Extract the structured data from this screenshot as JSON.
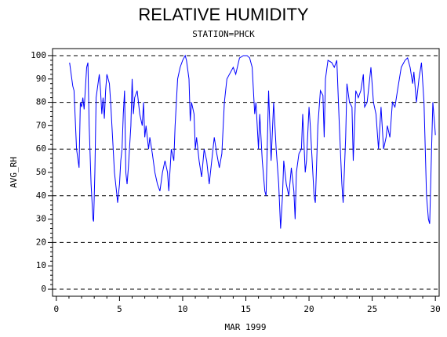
{
  "chart_data": {
    "type": "line",
    "title": "RELATIVE HUMIDITY",
    "subtitle": "STATION=PHCK",
    "x_label": "MAR 1999",
    "y_label": "AVG_RH",
    "color": "#0000ff",
    "xlim": [
      -0.3,
      30.3
    ],
    "ylim": [
      -3,
      103
    ],
    "xticks": [
      0,
      5,
      10,
      15,
      20,
      25,
      30
    ],
    "yticks": [
      0,
      10,
      20,
      30,
      40,
      50,
      60,
      70,
      80,
      90,
      100
    ],
    "ygrid": [
      0,
      20,
      40,
      60,
      80,
      100
    ],
    "x": [
      1.05,
      1.3,
      1.4,
      1.6,
      1.8,
      1.9,
      2.0,
      2.1,
      2.2,
      2.4,
      2.5,
      2.6,
      2.75,
      2.9,
      2.95,
      3.05,
      3.15,
      3.3,
      3.4,
      3.5,
      3.6,
      3.7,
      3.8,
      3.9,
      4.0,
      4.2,
      4.3,
      4.45,
      4.6,
      4.8,
      4.85,
      5.0,
      5.1,
      5.2,
      5.3,
      5.4,
      5.5,
      5.6,
      5.7,
      5.9,
      6.0,
      6.1,
      6.2,
      6.4,
      6.6,
      6.8,
      6.9,
      7.0,
      7.1,
      7.3,
      7.4,
      7.6,
      7.8,
      8.0,
      8.2,
      8.4,
      8.6,
      8.8,
      8.9,
      9.1,
      9.3,
      9.4,
      9.6,
      9.8,
      10.0,
      10.2,
      10.3,
      10.5,
      10.6,
      10.7,
      10.9,
      11.0,
      11.1,
      11.3,
      11.5,
      11.7,
      11.9,
      12.1,
      12.3,
      12.5,
      12.7,
      12.9,
      13.1,
      13.3,
      13.5,
      13.8,
      14.0,
      14.2,
      14.5,
      14.8,
      15.1,
      15.3,
      15.5,
      15.7,
      15.8,
      16.0,
      16.1,
      16.3,
      16.5,
      16.6,
      16.8,
      16.9,
      17.0,
      17.2,
      17.4,
      17.6,
      17.75,
      17.9,
      18.0,
      18.2,
      18.4,
      18.6,
      18.8,
      18.9,
      19.0,
      19.2,
      19.4,
      19.5,
      19.7,
      19.8,
      20.0,
      20.1,
      20.2,
      20.4,
      20.5,
      20.7,
      20.9,
      21.1,
      21.2,
      21.3,
      21.5,
      21.8,
      22.0,
      22.2,
      22.4,
      22.6,
      22.7,
      22.9,
      23.0,
      23.2,
      23.4,
      23.5,
      23.7,
      23.9,
      24.1,
      24.3,
      24.4,
      24.6,
      24.8,
      24.9,
      25.1,
      25.3,
      25.5,
      25.7,
      25.9,
      26.1,
      26.2,
      26.4,
      26.6,
      26.8,
      27.0,
      27.3,
      27.6,
      27.8,
      28.0,
      28.2,
      28.3,
      28.5,
      28.7,
      28.9,
      29.1,
      29.3,
      29.45,
      29.55,
      29.7,
      29.8,
      29.95,
      30.0
    ],
    "values": [
      97,
      87,
      85,
      60,
      52,
      80,
      78,
      82,
      77,
      95,
      97,
      70,
      45,
      30,
      29,
      50,
      82,
      88,
      92,
      85,
      75,
      82,
      73,
      85,
      92,
      88,
      80,
      65,
      50,
      40,
      37,
      45,
      55,
      60,
      75,
      85,
      50,
      45,
      52,
      70,
      90,
      75,
      82,
      85,
      75,
      70,
      80,
      65,
      70,
      60,
      65,
      58,
      50,
      45,
      42,
      50,
      55,
      50,
      42,
      60,
      55,
      70,
      90,
      95,
      98,
      100,
      98,
      90,
      72,
      80,
      75,
      60,
      65,
      55,
      48,
      60,
      55,
      45,
      55,
      65,
      58,
      52,
      58,
      80,
      90,
      93,
      95,
      92,
      99,
      100,
      100,
      99,
      95,
      75,
      80,
      60,
      75,
      55,
      42,
      40,
      85,
      70,
      55,
      80,
      60,
      45,
      26,
      40,
      55,
      45,
      40,
      52,
      42,
      30,
      50,
      58,
      60,
      75,
      50,
      55,
      78,
      70,
      60,
      40,
      37,
      70,
      85,
      83,
      65,
      90,
      98,
      97,
      95,
      98,
      70,
      45,
      37,
      65,
      88,
      80,
      78,
      55,
      85,
      82,
      85,
      92,
      78,
      80,
      90,
      95,
      80,
      75,
      60,
      78,
      60,
      65,
      70,
      65,
      80,
      78,
      85,
      95,
      98,
      99,
      95,
      88,
      93,
      80,
      90,
      97,
      80,
      40,
      30,
      28,
      60,
      80,
      70,
      66
    ]
  }
}
